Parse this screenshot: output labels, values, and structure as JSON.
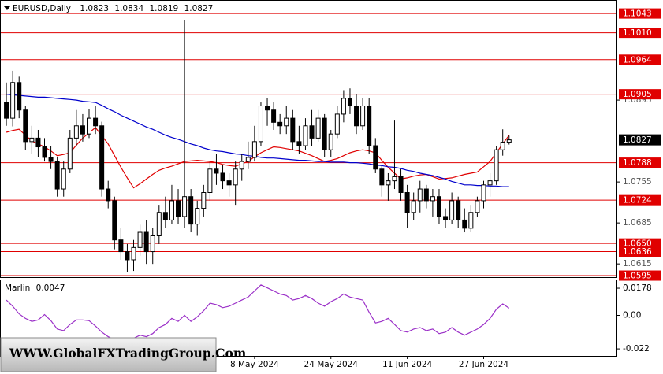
{
  "chart_data": [
    {
      "type": "candlestick",
      "title": "EURUSD,Daily",
      "open": [
        1.0891,
        1.0864,
        1.0925,
        1.0878,
        1.0824,
        1.083,
        1.0815,
        1.0797,
        1.079,
        1.0743,
        1.0777,
        1.083,
        1.0851,
        1.0837,
        1.0864,
        1.0851,
        1.0743,
        1.0723,
        1.0656,
        1.0636,
        1.0622,
        1.0643,
        1.0669,
        1.0636,
        1.0663,
        1.0703,
        1.069,
        1.0723,
        1.0696,
        1.073,
        1.0683,
        1.071,
        1.0737,
        1.0777,
        1.077,
        1.0757,
        1.075,
        1.0777,
        1.079,
        1.0797,
        1.0824,
        1.0885,
        1.0878,
        1.0857,
        1.0851,
        1.0864,
        1.0824,
        1.0817,
        1.0851,
        1.083,
        1.0864,
        1.081,
        1.0837,
        1.0871,
        1.0898,
        1.0885,
        1.0851,
        1.0885,
        1.0817,
        1.0777,
        1.075,
        1.0757,
        1.0764,
        1.0737,
        1.0703,
        1.0723,
        1.0743,
        1.0723,
        1.073,
        1.0696,
        1.069,
        1.0723,
        1.069,
        1.0676,
        1.0703,
        1.0723,
        1.075,
        1.0757,
        1.081,
        1.0823
      ],
      "high": [
        1.0925,
        1.0945,
        1.0935,
        1.0885,
        1.0851,
        1.0844,
        1.083,
        1.0817,
        1.0797,
        1.079,
        1.0844,
        1.0878,
        1.0871,
        1.088,
        1.0885,
        1.0858,
        1.0757,
        1.073,
        1.0676,
        1.0649,
        1.0656,
        1.0682,
        1.069,
        1.0676,
        1.0716,
        1.073,
        1.075,
        1.0743,
        1.1032,
        1.0743,
        1.0723,
        1.075,
        1.079,
        1.0803,
        1.0784,
        1.077,
        1.079,
        1.0803,
        1.0824,
        1.0851,
        1.0891,
        1.0898,
        1.0891,
        1.0871,
        1.0885,
        1.0878,
        1.0851,
        1.0864,
        1.0878,
        1.0878,
        1.0871,
        1.0844,
        1.0885,
        1.0912,
        1.0915,
        1.0905,
        1.0898,
        1.0898,
        1.083,
        1.0784,
        1.077,
        1.086,
        1.0777,
        1.075,
        1.0737,
        1.0757,
        1.075,
        1.0743,
        1.0743,
        1.071,
        1.0737,
        1.073,
        1.071,
        1.0716,
        1.073,
        1.0757,
        1.077,
        1.0817,
        1.0845,
        1.0834
      ],
      "low": [
        1.0851,
        1.085,
        1.0864,
        1.081,
        1.0803,
        1.0797,
        1.079,
        1.0777,
        1.073,
        1.073,
        1.077,
        1.0817,
        1.0824,
        1.083,
        1.0837,
        1.073,
        1.071,
        1.064,
        1.0622,
        1.0601,
        1.0603,
        1.0629,
        1.0615,
        1.0615,
        1.0649,
        1.0676,
        1.0683,
        1.0683,
        1.0676,
        1.0669,
        1.0663,
        1.0696,
        1.0723,
        1.075,
        1.0743,
        1.073,
        1.0716,
        1.0757,
        1.0777,
        1.079,
        1.0817,
        1.0851,
        1.0844,
        1.0837,
        1.0837,
        1.081,
        1.0803,
        1.081,
        1.0817,
        1.0824,
        1.0797,
        1.0797,
        1.083,
        1.0857,
        1.0871,
        1.0837,
        1.0844,
        1.0803,
        1.077,
        1.073,
        1.0723,
        1.0743,
        1.0723,
        1.0676,
        1.069,
        1.0703,
        1.071,
        1.0696,
        1.0683,
        1.0676,
        1.0683,
        1.0676,
        1.0669,
        1.0669,
        1.0696,
        1.071,
        1.073,
        1.075,
        1.08,
        1.0819
      ],
      "close": [
        1.0864,
        1.0925,
        1.0878,
        1.0824,
        1.083,
        1.0815,
        1.0797,
        1.079,
        1.0743,
        1.0777,
        1.083,
        1.0851,
        1.0837,
        1.0864,
        1.0851,
        1.0743,
        1.0723,
        1.0656,
        1.0636,
        1.0622,
        1.0643,
        1.0669,
        1.0636,
        1.0663,
        1.0703,
        1.069,
        1.0723,
        1.0696,
        1.073,
        1.0683,
        1.071,
        1.0737,
        1.0777,
        1.077,
        1.0757,
        1.075,
        1.0777,
        1.079,
        1.0797,
        1.0824,
        1.0885,
        1.0878,
        1.0857,
        1.0851,
        1.0864,
        1.0824,
        1.0817,
        1.0851,
        1.083,
        1.0864,
        1.081,
        1.0837,
        1.0871,
        1.0898,
        1.0885,
        1.0851,
        1.0885,
        1.0817,
        1.0777,
        1.075,
        1.0757,
        1.0764,
        1.0737,
        1.0703,
        1.0723,
        1.0743,
        1.0723,
        1.073,
        1.0696,
        1.069,
        1.0723,
        1.069,
        1.0676,
        1.0703,
        1.0723,
        1.075,
        1.0757,
        1.081,
        1.0823,
        1.0827
      ],
      "up_color": "#ffffff",
      "down_color": "#000000",
      "lines": [
        {
          "color": "#e00000",
          "values": [
            1.084,
            1.0843,
            1.0845,
            1.0835,
            1.0825,
            1.082,
            1.0815,
            1.0808,
            1.08,
            1.0802,
            1.0805,
            1.0818,
            1.083,
            1.0839,
            1.0848,
            1.0834,
            1.082,
            1.08,
            1.078,
            1.0762,
            1.0745,
            1.0752,
            1.076,
            1.0768,
            1.0775,
            1.0779,
            1.0782,
            1.0786,
            1.079,
            1.0791,
            1.0792,
            1.0791,
            1.079,
            1.0788,
            1.0785,
            1.0783,
            1.0782,
            1.0786,
            1.079,
            1.0798,
            1.0805,
            1.081,
            1.0815,
            1.0814,
            1.0812,
            1.081,
            1.0808,
            1.0804,
            1.08,
            1.0795,
            1.079,
            1.0792,
            1.0795,
            1.08,
            1.0805,
            1.0808,
            1.081,
            1.0808,
            1.0805,
            1.0792,
            1.078,
            1.077,
            1.076,
            1.0762,
            1.0765,
            1.0767,
            1.0768,
            1.0764,
            1.076,
            1.0761,
            1.0762,
            1.0765,
            1.0768,
            1.077,
            1.0772,
            1.0781,
            1.079,
            1.0805,
            1.082,
            1.0835
          ]
        },
        {
          "color": "#0000cc",
          "values": [
            1.0905,
            1.0904,
            1.0903,
            1.0902,
            1.0901,
            1.09,
            1.09,
            1.0899,
            1.0898,
            1.0897,
            1.0896,
            1.0895,
            1.0893,
            1.0892,
            1.0891,
            1.0886,
            1.088,
            1.0875,
            1.0869,
            1.0864,
            1.0859,
            1.0854,
            1.0849,
            1.0845,
            1.084,
            1.0835,
            1.0831,
            1.0828,
            1.0824,
            1.082,
            1.0817,
            1.0813,
            1.081,
            1.0808,
            1.0807,
            1.0805,
            1.0803,
            1.0802,
            1.08,
            1.0799,
            1.0797,
            1.0796,
            1.0796,
            1.0795,
            1.0794,
            1.0793,
            1.0792,
            1.0792,
            1.0791,
            1.079,
            1.079,
            1.0789,
            1.0789,
            1.0789,
            1.0788,
            1.0788,
            1.0787,
            1.0786,
            1.0784,
            1.0783,
            1.0781,
            1.078,
            1.0778,
            1.0775,
            1.0773,
            1.077,
            1.0768,
            1.0766,
            1.0763,
            1.076,
            1.0756,
            1.0753,
            1.075,
            1.075,
            1.0749,
            1.0749,
            1.0748,
            1.0748,
            1.0747,
            1.0747
          ]
        }
      ],
      "levels": [
        1.1043,
        {
          "value": 1.101,
          "label": "1.1010"
        },
        1.0964,
        1.0905,
        1.0788,
        1.0724,
        {
          "value": 1.065,
          "label": "1.0650"
        },
        1.0636,
        1.0595
      ],
      "level_color": "#e00000",
      "ylim": [
        1.0591,
        1.1066
      ],
      "yticks": [
        1.0615,
        1.0685,
        1.0755,
        1.0895
      ],
      "xlim": [
        -1,
        96
      ],
      "xticks": [
        {
          "value": 39,
          "label": "8 May 2024"
        },
        {
          "value": 51,
          "label": "24 May 2024"
        },
        {
          "value": 63,
          "label": "11 Jun 2024"
        },
        {
          "value": 75,
          "label": "27 Jun 2024"
        }
      ]
    },
    {
      "type": "line",
      "title": "Marlin",
      "color": "#9b30c8",
      "values": [
        0.01,
        0.006,
        0.001,
        -0.002,
        -0.004,
        -0.003,
        0.0005,
        -0.0035,
        -0.009,
        -0.01,
        -0.006,
        -0.003,
        -0.003,
        -0.0035,
        -0.007,
        -0.011,
        -0.014,
        -0.016,
        -0.017,
        -0.016,
        -0.015,
        -0.013,
        -0.014,
        -0.012,
        -0.008,
        -0.006,
        -0.002,
        -0.004,
        0.0,
        -0.004,
        -0.001,
        0.003,
        0.008,
        0.007,
        0.005,
        0.006,
        0.008,
        0.01,
        0.012,
        0.016,
        0.02,
        0.018,
        0.016,
        0.014,
        0.013,
        0.01,
        0.011,
        0.013,
        0.011,
        0.008,
        0.006,
        0.009,
        0.011,
        0.014,
        0.012,
        0.011,
        0.01,
        0.002,
        -0.005,
        -0.004,
        -0.002,
        -0.006,
        -0.01,
        -0.011,
        -0.009,
        -0.008,
        -0.01,
        -0.009,
        -0.012,
        -0.011,
        -0.008,
        -0.011,
        -0.013,
        -0.011,
        -0.009,
        -0.006,
        -0.002,
        0.004,
        0.0075,
        0.0047
      ],
      "ylim": [
        -0.0266,
        0.0235
      ],
      "yticks": [
        0.0178,
        {
          "value": 0,
          "label": "0.00"
        },
        -0.022
      ],
      "xlim": [
        -1,
        96
      ]
    }
  ],
  "watermark": "WWW.GlobalFXTradingGroup.Com"
}
